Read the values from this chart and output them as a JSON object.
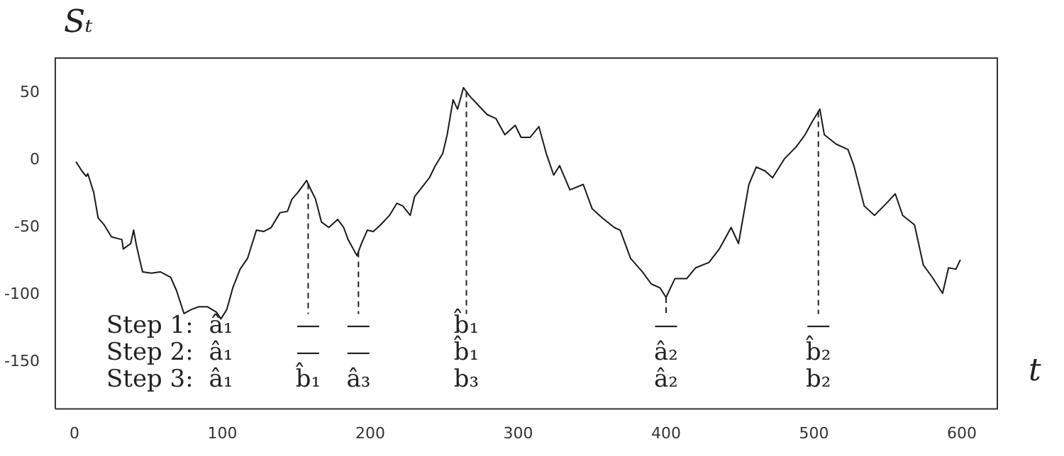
{
  "chart_data": {
    "type": "line",
    "xlabel": "t",
    "ylabel": "Sₜ",
    "x": [
      1,
      5,
      8,
      9,
      13,
      16,
      20,
      25,
      32,
      33,
      38,
      40,
      42,
      46,
      52,
      58,
      65,
      69,
      74,
      79,
      84,
      90,
      96,
      99,
      103,
      107,
      112,
      117,
      123,
      128,
      133,
      139,
      144,
      147,
      151,
      157,
      159,
      163,
      167,
      172,
      178,
      182,
      185,
      191,
      194,
      198,
      202,
      207,
      213,
      218,
      222,
      227,
      230,
      235,
      240,
      244,
      249,
      252,
      256,
      259,
      263,
      267,
      273,
      279,
      285,
      291,
      298,
      302,
      308,
      314,
      319,
      324,
      328,
      335,
      344,
      350,
      357,
      365,
      369,
      376,
      384,
      390,
      396,
      400,
      406,
      414,
      420,
      429,
      436,
      444,
      449,
      456,
      461,
      467,
      472,
      480,
      488,
      494,
      499,
      504,
      507,
      515,
      523,
      527,
      534,
      541,
      549,
      555,
      560,
      568,
      574,
      580,
      587,
      591,
      596,
      599
    ],
    "series": [
      {
        "color": "#1a1a1a",
        "values": [
          -1,
          -8,
          -12,
          -10,
          -24,
          -43,
          -48,
          -57,
          -59,
          -66,
          -62,
          -52,
          -64,
          -83,
          -84,
          -83,
          -87,
          -97,
          -114,
          -111,
          -109,
          -109,
          -113,
          -118,
          -111,
          -95,
          -81,
          -73,
          -52,
          -53,
          -50,
          -39,
          -38,
          -29,
          -24,
          -15,
          -20,
          -29,
          -46,
          -50,
          -44,
          -50,
          -59,
          -71,
          -62,
          -52,
          -53,
          -48,
          -41,
          -32,
          -34,
          -41,
          -27,
          -20,
          -13,
          -4,
          5,
          19,
          45,
          38,
          54,
          48,
          41,
          34,
          31,
          19,
          26,
          17,
          17,
          25,
          5,
          -11,
          -4,
          -22,
          -18,
          -36,
          -43,
          -50,
          -52,
          -73,
          -83,
          -92,
          -95,
          -102,
          -88,
          -88,
          -80,
          -76,
          -66,
          -50,
          -62,
          -18,
          -5,
          -8,
          -13,
          1,
          10,
          19,
          29,
          38,
          19,
          12,
          8,
          -4,
          -34,
          -41,
          -32,
          -25,
          -41,
          -48,
          -78,
          -87,
          -99,
          -80,
          -81,
          -74
        ]
      }
    ],
    "xlim": [
      -13,
      624
    ],
    "ylim": [
      -185,
      76
    ],
    "xticks": [
      0,
      100,
      200,
      300,
      400,
      500,
      600
    ],
    "yticks": [
      -150,
      -100,
      -50,
      0,
      50
    ],
    "grid": false,
    "legend": false,
    "marker": "none",
    "line_style": "solid",
    "ref_lines": [
      {
        "axis": "x",
        "value": 158,
        "line_style": "dashed",
        "label": "—\n—\nb̂₁"
      },
      {
        "axis": "x",
        "value": 192,
        "line_style": "dashed",
        "label": "—\n—\nâ₃"
      },
      {
        "axis": "x",
        "value": 265,
        "line_style": "dashed",
        "label": "b̂₁\nb̂₁\nb₃"
      },
      {
        "axis": "x",
        "value": 400,
        "line_style": "dashed",
        "label": "—\nâ₂\nâ₂"
      },
      {
        "axis": "x",
        "value": 503,
        "line_style": "dashed",
        "label": "—\nb̂₂\nb₂"
      }
    ],
    "annotations": [
      "Step 1:",
      "Step 2:",
      "Step 3:",
      "â₁",
      "â₁",
      "â₁"
    ]
  }
}
